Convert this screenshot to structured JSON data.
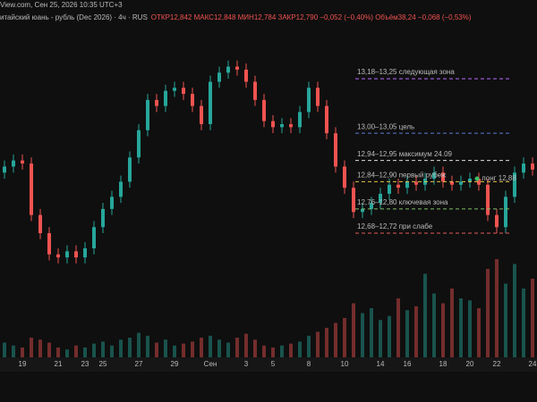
{
  "chart_data": {
    "type": "candlestick",
    "source": "View.com, Сен 25, 2026 10:35 UTC+3",
    "title": "итайский юань - рубль (Dec 2026) · 4ч · RUS",
    "legend_text": "ОТКР12,842 МАКС12,848 МИН12,784 ЗАКР12,790 −0,052 (−0,40%) Объём38,24 −0,068 (−0,53%)",
    "categories": [
      null,
      null,
      "19",
      null,
      null,
      null,
      "21",
      null,
      null,
      "23",
      null,
      "25",
      null,
      null,
      null,
      "27",
      null,
      null,
      null,
      "29",
      null,
      null,
      null,
      "Сен",
      null,
      null,
      null,
      "3",
      null,
      null,
      "5",
      null,
      null,
      null,
      "8",
      null,
      null,
      null,
      "10",
      null,
      null,
      null,
      "14",
      null,
      null,
      "16",
      null,
      null,
      null,
      "18",
      null,
      null,
      "20",
      null,
      null,
      "22",
      null,
      null,
      null,
      "24"
    ],
    "open": [
      12.9,
      12.92,
      12.94,
      12.93,
      12.76,
      12.7,
      12.63,
      12.62,
      12.64,
      12.62,
      12.65,
      12.72,
      12.78,
      12.82,
      12.87,
      12.95,
      13.04,
      13.14,
      13.12,
      13.17,
      13.18,
      13.16,
      13.12,
      13.06,
      13.2,
      13.23,
      13.25,
      13.24,
      13.2,
      13.14,
      13.07,
      13.05,
      13.06,
      13.05,
      13.1,
      13.18,
      13.12,
      13.03,
      12.92,
      12.85,
      12.77,
      12.78,
      12.8,
      12.83,
      12.86,
      12.85,
      12.87,
      12.86,
      12.88,
      12.9,
      12.87,
      12.86,
      12.87,
      12.88,
      12.86,
      12.76,
      12.72,
      12.82,
      12.9,
      12.93
    ],
    "high": [
      12.94,
      12.96,
      12.96,
      12.95,
      12.78,
      12.72,
      12.65,
      12.66,
      12.66,
      12.67,
      12.74,
      12.8,
      12.84,
      12.89,
      12.97,
      13.06,
      13.16,
      13.16,
      13.19,
      13.2,
      13.2,
      13.18,
      13.14,
      13.22,
      13.25,
      13.27,
      13.27,
      13.26,
      13.22,
      13.16,
      13.09,
      13.08,
      13.08,
      13.12,
      13.2,
      13.2,
      13.14,
      13.05,
      12.94,
      12.87,
      12.8,
      12.82,
      12.85,
      12.88,
      12.88,
      12.89,
      12.89,
      12.9,
      12.92,
      12.92,
      12.89,
      12.89,
      12.9,
      12.9,
      12.88,
      12.78,
      12.84,
      12.92,
      12.95,
      12.95
    ],
    "low": [
      12.88,
      12.9,
      12.91,
      12.74,
      12.68,
      12.61,
      12.6,
      12.6,
      12.6,
      12.6,
      12.63,
      12.7,
      12.76,
      12.8,
      12.85,
      12.93,
      13.02,
      13.1,
      13.1,
      13.15,
      13.14,
      13.1,
      13.04,
      13.04,
      13.18,
      13.21,
      13.22,
      13.18,
      13.12,
      13.05,
      13.03,
      13.03,
      13.03,
      13.03,
      13.08,
      13.1,
      13.01,
      12.9,
      12.83,
      12.75,
      12.75,
      12.76,
      12.78,
      12.81,
      12.83,
      12.83,
      12.84,
      12.84,
      12.86,
      12.85,
      12.84,
      12.84,
      12.85,
      12.84,
      12.74,
      12.7,
      12.7,
      12.8,
      12.88,
      12.89
    ],
    "close": [
      12.92,
      12.94,
      12.93,
      12.76,
      12.7,
      12.63,
      12.62,
      12.64,
      12.62,
      12.65,
      12.72,
      12.78,
      12.82,
      12.87,
      12.95,
      13.04,
      13.14,
      13.12,
      13.17,
      13.18,
      13.16,
      13.12,
      13.06,
      13.2,
      13.23,
      13.25,
      13.24,
      13.2,
      13.14,
      13.07,
      13.05,
      13.06,
      13.05,
      13.1,
      13.18,
      13.12,
      13.03,
      12.92,
      12.85,
      12.77,
      12.78,
      12.8,
      12.83,
      12.86,
      12.85,
      12.87,
      12.86,
      12.88,
      12.9,
      12.87,
      12.86,
      12.87,
      12.88,
      12.86,
      12.76,
      12.72,
      12.82,
      12.9,
      12.93,
      12.91
    ],
    "volume": [
      15,
      12,
      10,
      20,
      18,
      15,
      10,
      8,
      12,
      10,
      14,
      16,
      12,
      18,
      20,
      25,
      22,
      15,
      18,
      12,
      14,
      16,
      20,
      22,
      18,
      15,
      20,
      24,
      18,
      12,
      10,
      12,
      14,
      16,
      22,
      26,
      30,
      35,
      40,
      55,
      45,
      50,
      38,
      42,
      60,
      48,
      52,
      85,
      65,
      55,
      70,
      60,
      58,
      50,
      90,
      100,
      75,
      95,
      70,
      80
    ],
    "up_color": "#26a69a",
    "down_color": "#ef5350",
    "ylim": [
      12.29,
      13.47
    ],
    "y2lim": [
      0,
      100
    ],
    "levels": [
      {
        "label": "13,18–13,25 следующая зона",
        "price": 13.21,
        "color": "#b76bff"
      },
      {
        "label": "13,00–13,05 цель",
        "price": 13.03,
        "color": "#5b7bd5"
      },
      {
        "label": "12,94–12,95 максимум 24.09",
        "price": 12.94,
        "color": "#dddddd"
      },
      {
        "label": "12,84–12,90 первый рубеж",
        "price": 12.87,
        "color": "#e6c34a"
      },
      {
        "label": "12,76–12,80 ключевая зона",
        "price": 12.78,
        "color": "#7fbf6a"
      },
      {
        "label": "12,68–12,72 при слабе",
        "price": 12.7,
        "color": "#e05a5a"
      }
    ],
    "marker": {
      "label": "лонг 12,88",
      "price": 12.88,
      "color": "#3fbf6a"
    }
  }
}
